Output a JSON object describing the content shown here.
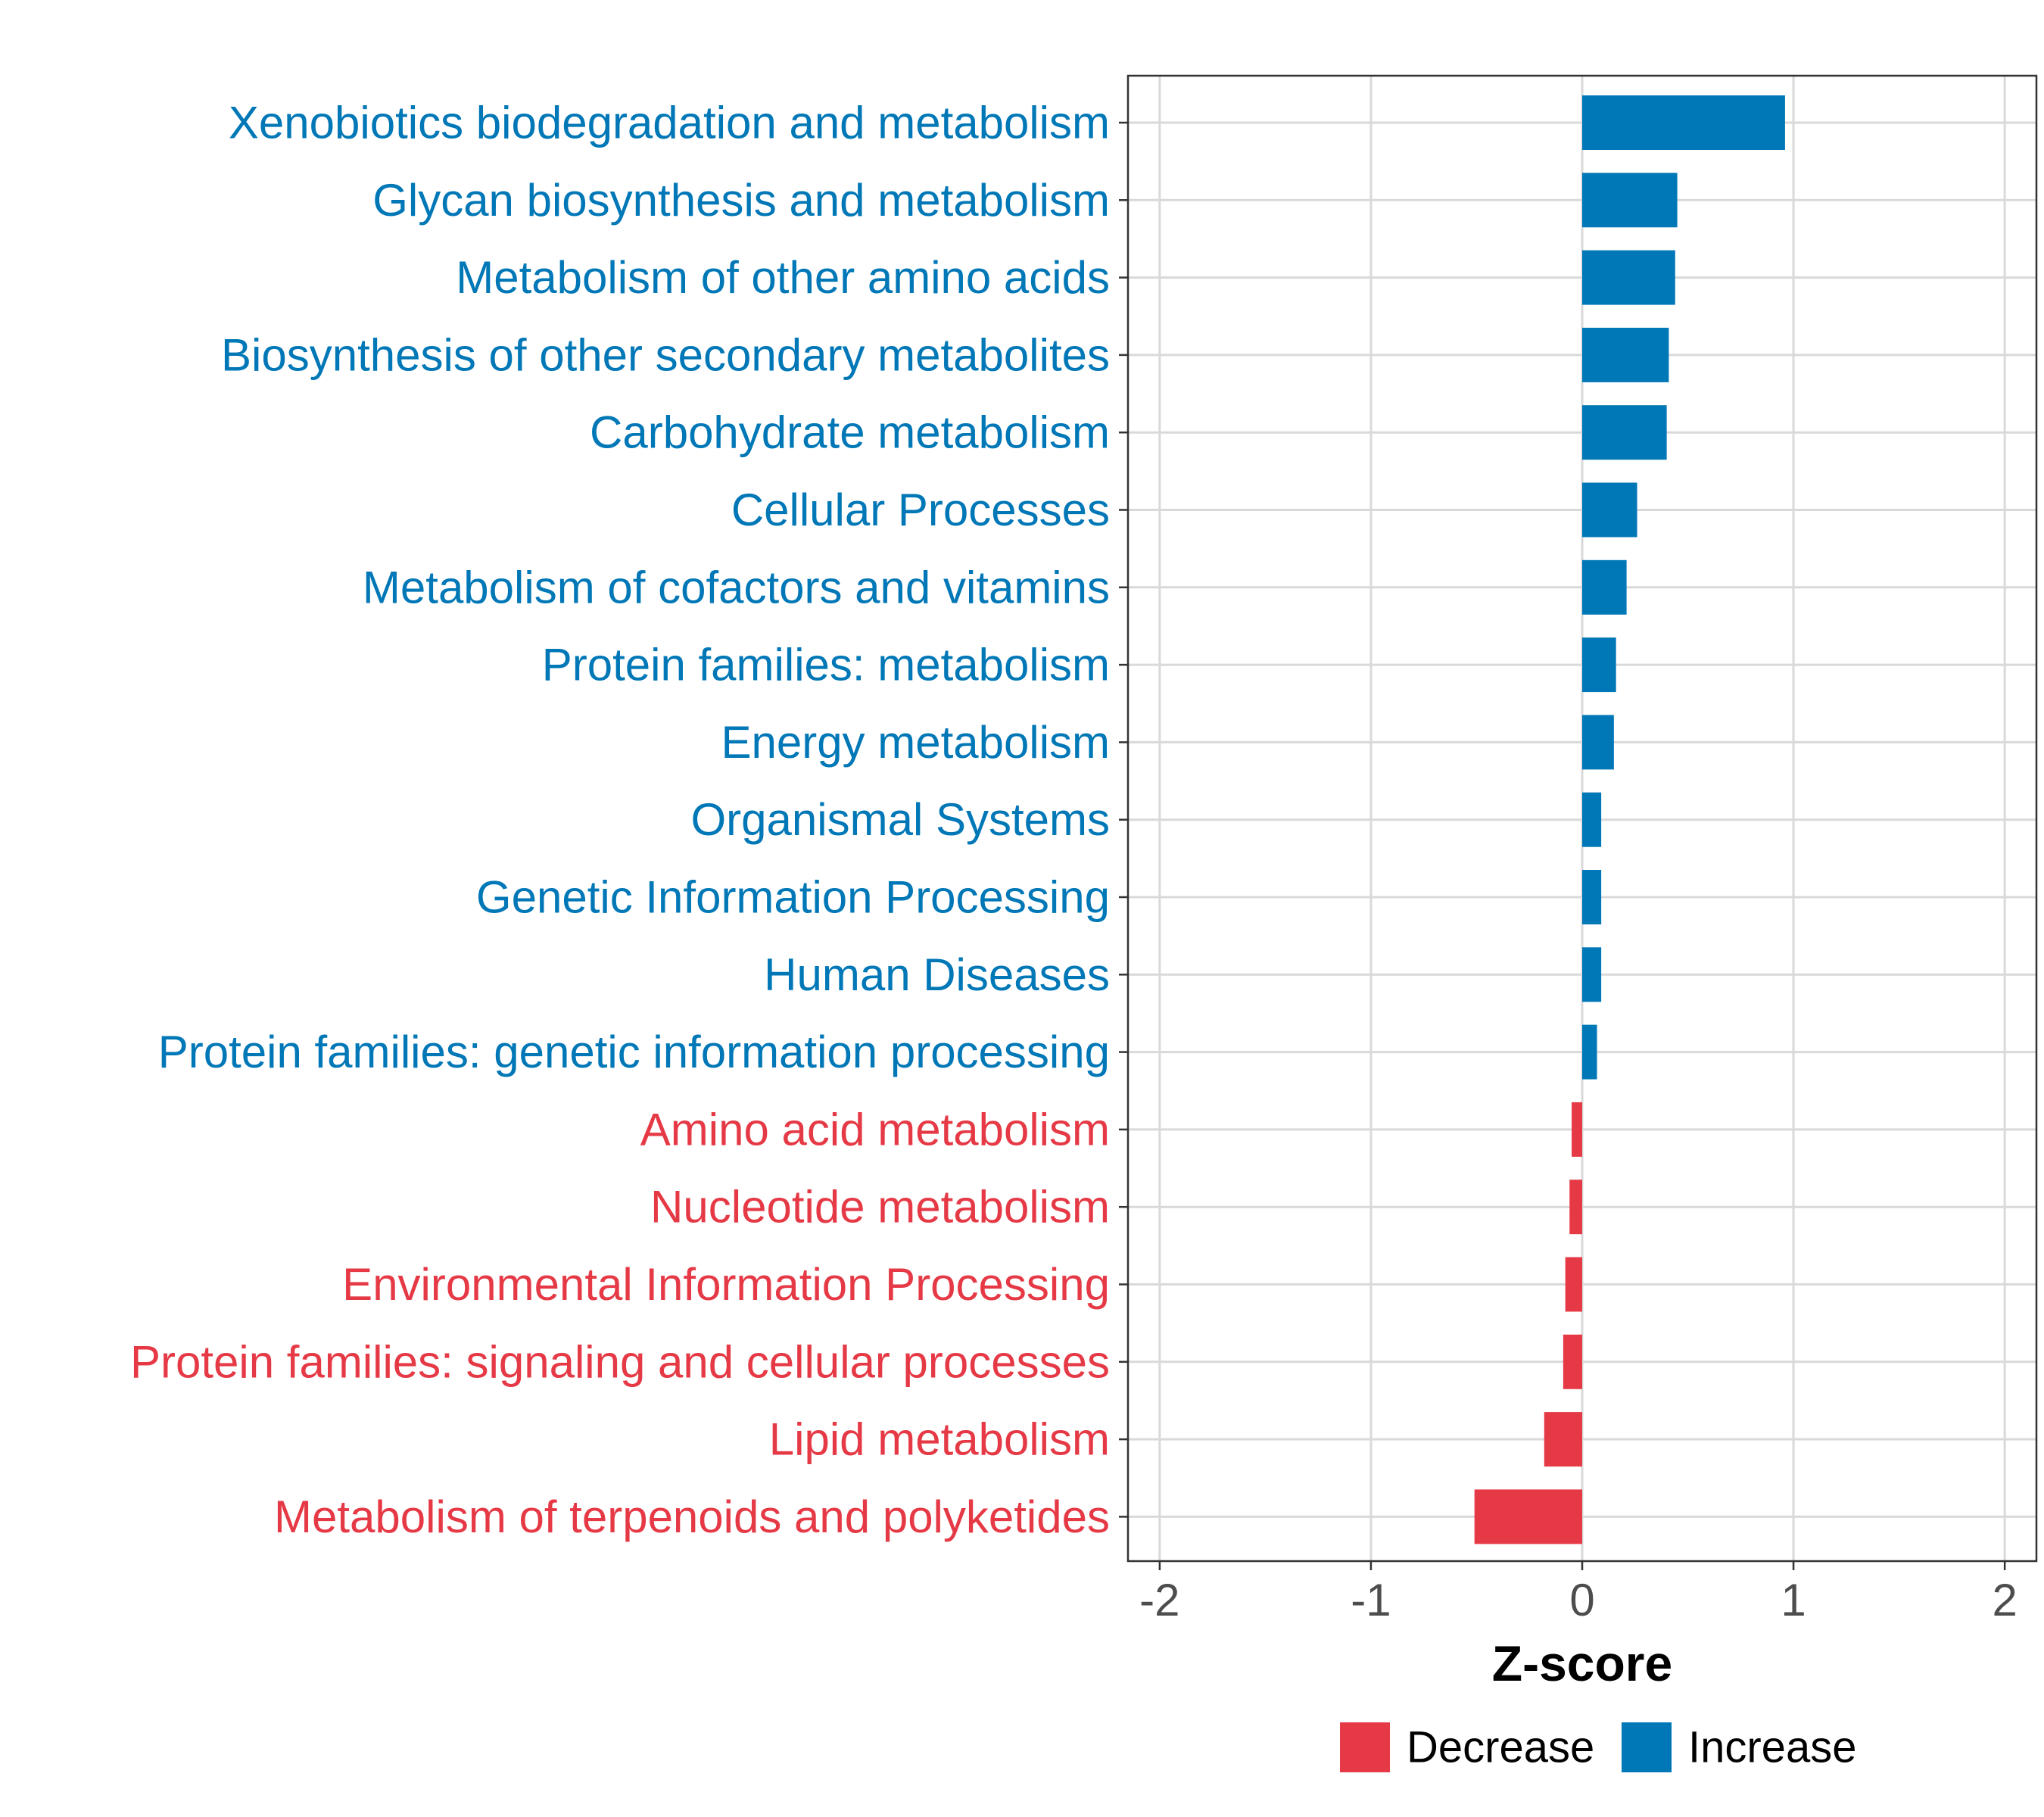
{
  "chart_data": {
    "type": "bar",
    "orientation": "horizontal",
    "title": "",
    "xlabel": "Z-score",
    "ylabel": "",
    "xlim": [
      -2.15,
      2.15
    ],
    "xticks": [
      -2,
      -1,
      0,
      1,
      2
    ],
    "xtick_labels": [
      "-2",
      "-1",
      "0",
      "1",
      "2"
    ],
    "grid": true,
    "legend_position": "bottom",
    "colors": {
      "Decrease": "#e63946",
      "Increase": "#0077b6"
    },
    "legend": [
      {
        "name": "Decrease",
        "color": "#e63946"
      },
      {
        "name": "Increase",
        "color": "#0077b6"
      }
    ],
    "categories": [
      "Xenobiotics biodegradation and metabolism",
      "Glycan biosynthesis and metabolism",
      "Metabolism of other amino acids",
      "Biosynthesis of other secondary metabolites",
      "Carbohydrate metabolism",
      "Cellular Processes",
      "Metabolism of cofactors and vitamins",
      "Protein families: metabolism",
      "Energy metabolism",
      "Organismal Systems",
      "Genetic Information Processing",
      "Human Diseases",
      "Protein families: genetic information processing",
      "Amino acid metabolism",
      "Nucleotide metabolism",
      "Environmental Information Processing",
      "Protein families: signaling and cellular processes",
      "Lipid metabolism",
      "Metabolism of terpenoids and polyketides"
    ],
    "values": [
      0.96,
      0.45,
      0.44,
      0.41,
      0.4,
      0.26,
      0.21,
      0.16,
      0.15,
      0.09,
      0.09,
      0.09,
      0.07,
      -0.05,
      -0.06,
      -0.08,
      -0.09,
      -0.18,
      -0.51
    ],
    "groups": [
      "Increase",
      "Increase",
      "Increase",
      "Increase",
      "Increase",
      "Increase",
      "Increase",
      "Increase",
      "Increase",
      "Increase",
      "Increase",
      "Increase",
      "Increase",
      "Decrease",
      "Decrease",
      "Decrease",
      "Decrease",
      "Decrease",
      "Decrease"
    ]
  }
}
